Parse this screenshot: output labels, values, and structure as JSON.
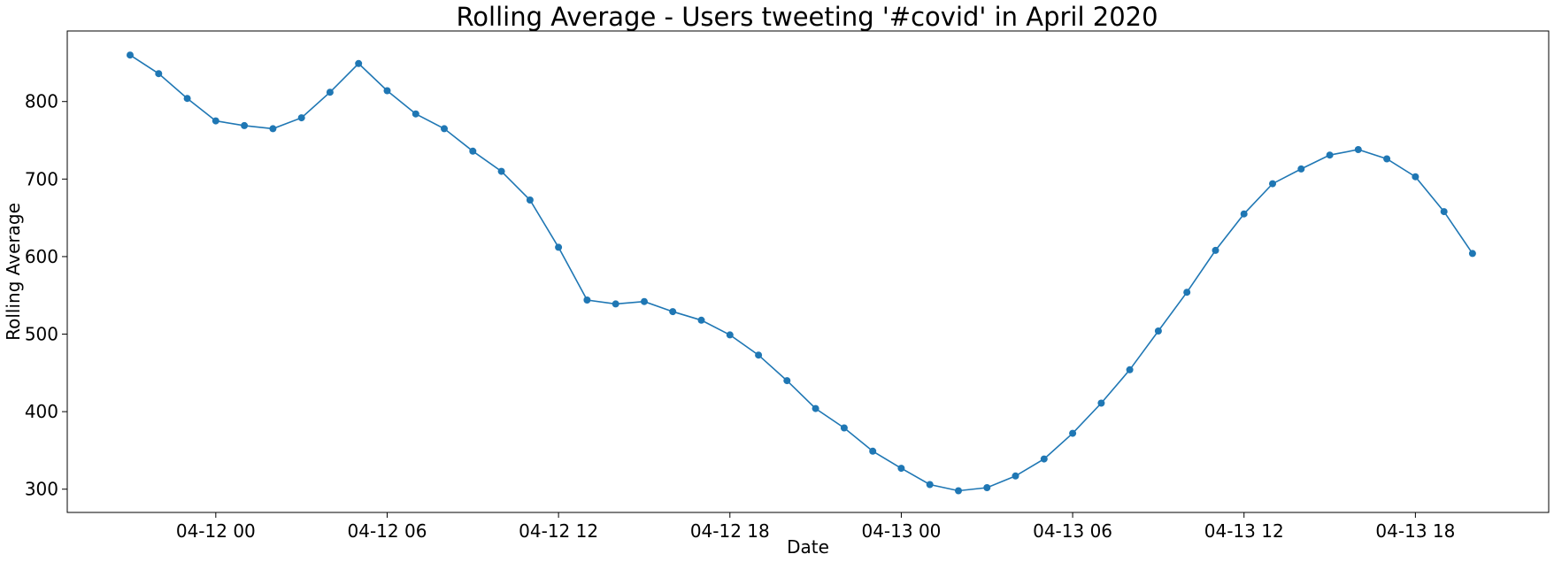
{
  "chart_data": {
    "type": "line",
    "title": "Rolling Average - Users tweeting '#covid' in April 2020",
    "xlabel": "Date",
    "ylabel": "Rolling Average",
    "x_axis_kind": "datetime",
    "xlim": [
      "2020-04-11T18:48",
      "2020-04-13T22:40"
    ],
    "ylim": [
      270,
      891
    ],
    "grid": false,
    "legend": "none",
    "line_color": "#1f77b4",
    "marker": "circle",
    "x_tick_labels": [
      {
        "value": "2020-04-12T00:00",
        "label": "04-12 00"
      },
      {
        "value": "2020-04-12T06:00",
        "label": "04-12 06"
      },
      {
        "value": "2020-04-12T12:00",
        "label": "04-12 12"
      },
      {
        "value": "2020-04-12T18:00",
        "label": "04-12 18"
      },
      {
        "value": "2020-04-13T00:00",
        "label": "04-13 00"
      },
      {
        "value": "2020-04-13T06:00",
        "label": "04-13 06"
      },
      {
        "value": "2020-04-13T12:00",
        "label": "04-13 12"
      },
      {
        "value": "2020-04-13T18:00",
        "label": "04-13 18"
      }
    ],
    "y_ticks": [
      300,
      400,
      500,
      600,
      700,
      800
    ],
    "x": [
      "2020-04-11T21:00",
      "2020-04-11T22:00",
      "2020-04-11T23:00",
      "2020-04-12T00:00",
      "2020-04-12T01:00",
      "2020-04-12T02:00",
      "2020-04-12T03:00",
      "2020-04-12T04:00",
      "2020-04-12T05:00",
      "2020-04-12T06:00",
      "2020-04-12T07:00",
      "2020-04-12T08:00",
      "2020-04-12T09:00",
      "2020-04-12T10:00",
      "2020-04-12T11:00",
      "2020-04-12T12:00",
      "2020-04-12T13:00",
      "2020-04-12T14:00",
      "2020-04-12T15:00",
      "2020-04-12T16:00",
      "2020-04-12T17:00",
      "2020-04-12T18:00",
      "2020-04-12T19:00",
      "2020-04-12T20:00",
      "2020-04-12T21:00",
      "2020-04-12T22:00",
      "2020-04-12T23:00",
      "2020-04-13T00:00",
      "2020-04-13T01:00",
      "2020-04-13T02:00",
      "2020-04-13T03:00",
      "2020-04-13T04:00",
      "2020-04-13T05:00",
      "2020-04-13T06:00",
      "2020-04-13T07:00",
      "2020-04-13T08:00",
      "2020-04-13T09:00",
      "2020-04-13T10:00",
      "2020-04-13T11:00",
      "2020-04-13T12:00",
      "2020-04-13T13:00",
      "2020-04-13T14:00",
      "2020-04-13T15:00",
      "2020-04-13T16:00",
      "2020-04-13T17:00",
      "2020-04-13T18:00",
      "2020-04-13T19:00",
      "2020-04-13T20:00"
    ],
    "values": [
      860,
      836,
      804,
      775,
      769,
      765,
      779,
      812,
      849,
      814,
      784,
      765,
      736,
      710,
      673,
      612,
      544,
      539,
      542,
      529,
      518,
      499,
      473,
      440,
      404,
      379,
      349,
      327,
      306,
      298,
      302,
      317,
      339,
      372,
      411,
      454,
      504,
      554,
      608,
      655,
      694,
      713,
      731,
      738,
      726,
      703,
      658,
      604
    ]
  }
}
